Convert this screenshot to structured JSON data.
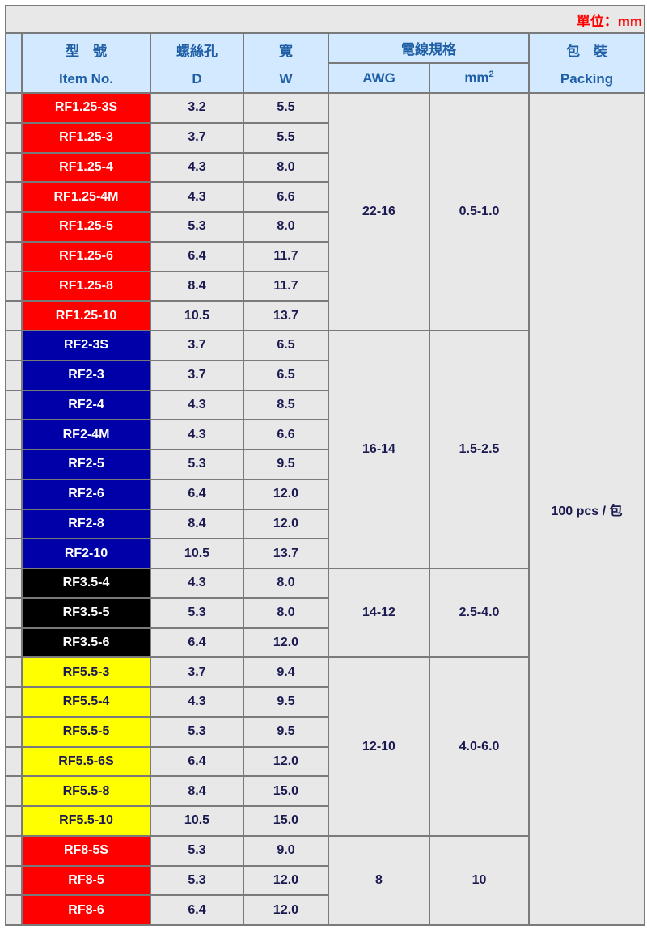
{
  "unit_label": "單位：mm",
  "headers": {
    "item_zh": "型　號",
    "item_en": "Item No.",
    "d_zh": "螺絲孔",
    "d_en": "D",
    "w_zh": "寬",
    "w_en": "W",
    "wire_zh": "電線規格",
    "awg": "AWG",
    "mm": "mm",
    "mm_sup": "2",
    "pack_zh": "包　裝",
    "pack_en": "Packing"
  },
  "packing": "100 pcs / 包",
  "colors": {
    "red": "#ff0000",
    "blue": "#0000a8",
    "black": "#000000",
    "yellow": "#ffff00",
    "header_bg": "#d2e9ff",
    "header_text": "#1f5fa6",
    "unit_text": "#ff0000"
  },
  "groups": [
    {
      "awg": "22-16",
      "mm2": "0.5-1.0",
      "color": "red",
      "rows": [
        {
          "item": "RF1.25-3S",
          "d": "3.2",
          "w": "5.5"
        },
        {
          "item": "RF1.25-3",
          "d": "3.7",
          "w": "5.5"
        },
        {
          "item": "RF1.25-4",
          "d": "4.3",
          "w": "8.0"
        },
        {
          "item": "RF1.25-4M",
          "d": "4.3",
          "w": "6.6"
        },
        {
          "item": "RF1.25-5",
          "d": "5.3",
          "w": "8.0"
        },
        {
          "item": "RF1.25-6",
          "d": "6.4",
          "w": "11.7"
        },
        {
          "item": "RF1.25-8",
          "d": "8.4",
          "w": "11.7"
        },
        {
          "item": "RF1.25-10",
          "d": "10.5",
          "w": "13.7"
        }
      ]
    },
    {
      "awg": "16-14",
      "mm2": "1.5-2.5",
      "color": "blue",
      "rows": [
        {
          "item": "RF2-3S",
          "d": "3.7",
          "w": "6.5"
        },
        {
          "item": "RF2-3",
          "d": "3.7",
          "w": "6.5"
        },
        {
          "item": "RF2-4",
          "d": "4.3",
          "w": "8.5"
        },
        {
          "item": "RF2-4M",
          "d": "4.3",
          "w": "6.6"
        },
        {
          "item": "RF2-5",
          "d": "5.3",
          "w": "9.5"
        },
        {
          "item": "RF2-6",
          "d": "6.4",
          "w": "12.0"
        },
        {
          "item": "RF2-8",
          "d": "8.4",
          "w": "12.0"
        },
        {
          "item": "RF2-10",
          "d": "10.5",
          "w": "13.7"
        }
      ]
    },
    {
      "awg": "14-12",
      "mm2": "2.5-4.0",
      "color": "black",
      "rows": [
        {
          "item": "RF3.5-4",
          "d": "4.3",
          "w": "8.0"
        },
        {
          "item": "RF3.5-5",
          "d": "5.3",
          "w": "8.0"
        },
        {
          "item": "RF3.5-6",
          "d": "6.4",
          "w": "12.0"
        }
      ]
    },
    {
      "awg": "12-10",
      "mm2": "4.0-6.0",
      "color": "yellow",
      "rows": [
        {
          "item": "RF5.5-3",
          "d": "3.7",
          "w": "9.4"
        },
        {
          "item": "RF5.5-4",
          "d": "4.3",
          "w": "9.5"
        },
        {
          "item": "RF5.5-5",
          "d": "5.3",
          "w": "9.5"
        },
        {
          "item": "RF5.5-6S",
          "d": "6.4",
          "w": "12.0"
        },
        {
          "item": "RF5.5-8",
          "d": "8.4",
          "w": "15.0"
        },
        {
          "item": "RF5.5-10",
          "d": "10.5",
          "w": "15.0"
        }
      ]
    },
    {
      "awg": "8",
      "mm2": "10",
      "color": "red",
      "rows": [
        {
          "item": "RF8-5S",
          "d": "5.3",
          "w": "9.0"
        },
        {
          "item": "RF8-5",
          "d": "5.3",
          "w": "12.0"
        },
        {
          "item": "RF8-6",
          "d": "6.4",
          "w": "12.0"
        }
      ]
    }
  ]
}
